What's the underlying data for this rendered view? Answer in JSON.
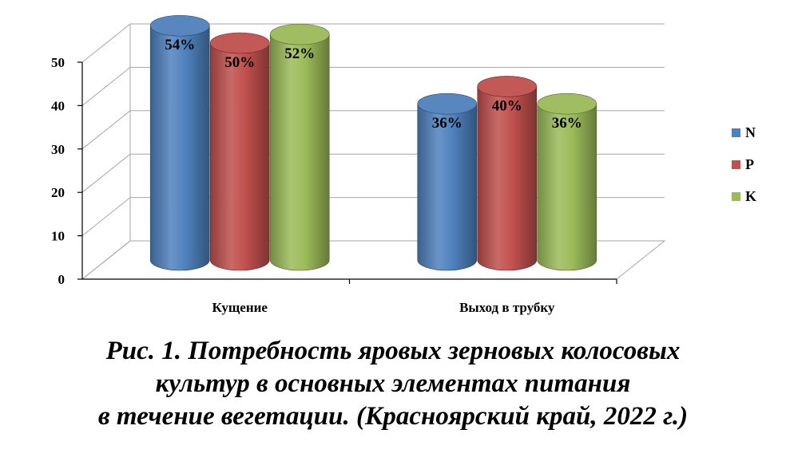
{
  "chart_data": {
    "type": "bar",
    "style": "3d-cylinder",
    "categories": [
      "Кущение",
      "Выход в трубку"
    ],
    "series": [
      {
        "name": "N",
        "values": [
          54,
          36
        ],
        "labels": [
          "54%",
          "36%"
        ],
        "color": "#4F81BD"
      },
      {
        "name": "P",
        "values": [
          50,
          40
        ],
        "labels": [
          "50%",
          "40%"
        ],
        "color": "#C0504D"
      },
      {
        "name": "K",
        "values": [
          52,
          36
        ],
        "labels": [
          "52%",
          "36%"
        ],
        "color": "#9BBB59"
      }
    ],
    "yticks": [
      0,
      10,
      20,
      30,
      40,
      50
    ],
    "ylim": [
      0,
      50
    ],
    "grid": true,
    "legend": "right"
  },
  "caption": {
    "lines": [
      "Рис. 1. Потребность яровых зерновых колосовых",
      "культур в основных элементах питания",
      "в течение вегетации. (Красноярский край, 2022 г.)"
    ]
  }
}
